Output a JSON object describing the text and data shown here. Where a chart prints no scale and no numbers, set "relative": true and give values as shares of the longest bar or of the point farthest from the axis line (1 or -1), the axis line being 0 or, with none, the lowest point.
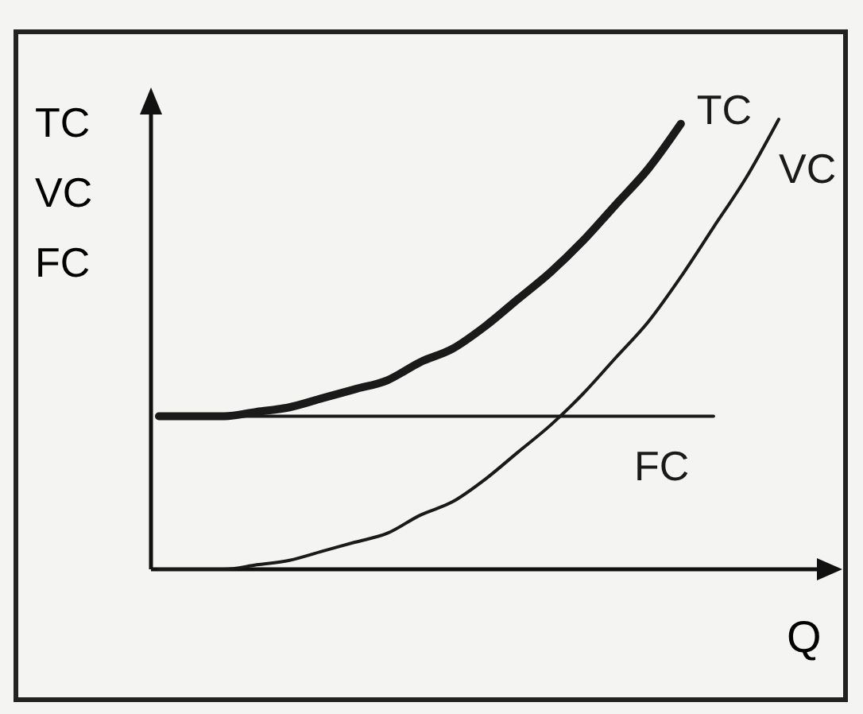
{
  "chart_data": {
    "type": "line",
    "relative": true,
    "xlabel": "Q",
    "ylabel": "TC\nVC\nFC",
    "legend": false,
    "grid": false,
    "marker": "none",
    "line_style": "solid",
    "categories": [
      null,
      null,
      null,
      null,
      null,
      null,
      null,
      null,
      null,
      null,
      null,
      null,
      null,
      null,
      null,
      null,
      null,
      null,
      null,
      null
    ],
    "series": [
      {
        "name": "TC",
        "color": "#1a1a1a",
        "values": [
          0.34,
          0.34,
          0.34,
          0.35,
          0.36,
          0.38,
          0.4,
          0.42,
          0.46,
          0.49,
          0.54,
          0.6,
          0.66,
          0.73,
          0.81,
          0.89,
          0.99,
          null,
          null,
          null
        ]
      },
      {
        "name": "VC",
        "color": "#1a1a1a",
        "values": [
          0,
          0,
          0,
          0.01,
          0.02,
          0.04,
          0.06,
          0.08,
          0.12,
          0.15,
          0.2,
          0.26,
          0.32,
          0.39,
          0.47,
          0.55,
          0.65,
          0.76,
          0.87,
          1
        ]
      },
      {
        "name": "FC",
        "color": "#1a1a1a",
        "values": [
          0.34,
          0.34,
          0.34,
          0.34,
          0.34,
          0.34,
          0.34,
          0.34,
          0.34,
          0.34,
          0.34,
          0.34,
          0.34,
          0.34,
          0.34,
          0.34,
          0.34,
          0.34,
          null,
          null
        ]
      }
    ]
  }
}
